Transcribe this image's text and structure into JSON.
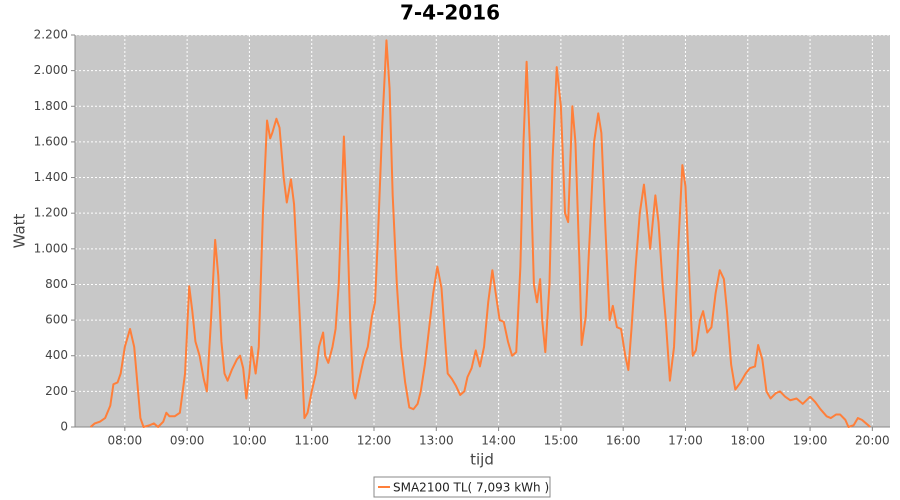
{
  "chart_data": {
    "type": "line",
    "title": "7-4-2016",
    "x_label": "tijd",
    "y_label": "Watt",
    "grid": true,
    "legend": "bottom",
    "xlim": [
      432,
      1217
    ],
    "ylim": [
      0,
      2200
    ],
    "xticks": [
      {
        "value": 480,
        "label": "08:00"
      },
      {
        "value": 540,
        "label": "09:00"
      },
      {
        "value": 600,
        "label": "10:00"
      },
      {
        "value": 660,
        "label": "11:00"
      },
      {
        "value": 720,
        "label": "12:00"
      },
      {
        "value": 780,
        "label": "13:00"
      },
      {
        "value": 840,
        "label": "14:00"
      },
      {
        "value": 900,
        "label": "15:00"
      },
      {
        "value": 960,
        "label": "16:00"
      },
      {
        "value": 1020,
        "label": "17:00"
      },
      {
        "value": 1080,
        "label": "18:00"
      },
      {
        "value": 1140,
        "label": "19:00"
      },
      {
        "value": 1200,
        "label": "20:00"
      }
    ],
    "yticks": [
      0,
      200,
      400,
      600,
      800,
      {
        "value": 1000,
        "label": "1.000"
      },
      {
        "value": 1200,
        "label": "1.200"
      },
      {
        "value": 1400,
        "label": "1.400"
      },
      {
        "value": 1600,
        "label": "1.600"
      },
      {
        "value": 1800,
        "label": "1.800"
      },
      {
        "value": 2000,
        "label": "2.000"
      },
      {
        "value": 2200,
        "label": "2.200"
      }
    ],
    "series": [
      {
        "name": "SMA2100 TL( 7,093 kWh )",
        "color": "#ff7f3a",
        "x": [
          447,
          451,
          456,
          461,
          466,
          469,
          473,
          476,
          480,
          485,
          489,
          492,
          495,
          498,
          504,
          508,
          512,
          517,
          520,
          523,
          528,
          533,
          538,
          542,
          545,
          548,
          552,
          556,
          559,
          563,
          567,
          570,
          573,
          576,
          579,
          583,
          588,
          591,
          594,
          597,
          600,
          602,
          606,
          609,
          613,
          617,
          620,
          622,
          626,
          629,
          633,
          636,
          640,
          643,
          647,
          651,
          653,
          656,
          660,
          664,
          667,
          671,
          673,
          676,
          680,
          683,
          686,
          689,
          691,
          694,
          697,
          700,
          702,
          707,
          710,
          714,
          718,
          721,
          724,
          728,
          732,
          735,
          738,
          742,
          746,
          750,
          754,
          758,
          762,
          765,
          769,
          773,
          777,
          781,
          785,
          789,
          791,
          795,
          799,
          803,
          807,
          810,
          814,
          818,
          822,
          826,
          830,
          834,
          838,
          841,
          845,
          849,
          853,
          857,
          861,
          864,
          867,
          870,
          874,
          877,
          880,
          882,
          885,
          889,
          892,
          896,
          900,
          904,
          907,
          911,
          914,
          918,
          920,
          924,
          928,
          932,
          936,
          939,
          943,
          947,
          950,
          954,
          958,
          962,
          965,
          968,
          972,
          976,
          980,
          983,
          986,
          991,
          994,
          998,
          1001,
          1005,
          1009,
          1013,
          1017,
          1020,
          1024,
          1027,
          1030,
          1034,
          1037,
          1041,
          1045,
          1049,
          1053,
          1057,
          1060,
          1064,
          1068,
          1073,
          1078,
          1082,
          1087,
          1090,
          1094,
          1098,
          1102,
          1107,
          1111,
          1116,
          1121,
          1127,
          1133,
          1140,
          1145,
          1150,
          1156,
          1160,
          1165,
          1169,
          1174,
          1177,
          1182,
          1186,
          1190,
          1194,
          1198
        ],
        "values": [
          0,
          20,
          30,
          50,
          120,
          240,
          250,
          300,
          450,
          550,
          450,
          250,
          50,
          0,
          10,
          20,
          0,
          30,
          80,
          60,
          60,
          80,
          300,
          790,
          650,
          480,
          400,
          270,
          200,
          600,
          1050,
          850,
          480,
          300,
          260,
          320,
          380,
          400,
          330,
          160,
          300,
          450,
          300,
          450,
          1200,
          1720,
          1620,
          1650,
          1730,
          1680,
          1400,
          1260,
          1390,
          1250,
          800,
          300,
          50,
          80,
          200,
          300,
          450,
          530,
          400,
          360,
          450,
          550,
          800,
          1300,
          1630,
          1200,
          600,
          200,
          160,
          300,
          380,
          450,
          620,
          700,
          1100,
          1700,
          2170,
          1900,
          1300,
          800,
          450,
          250,
          110,
          100,
          130,
          200,
          350,
          550,
          750,
          900,
          780,
          450,
          300,
          270,
          230,
          180,
          200,
          280,
          330,
          430,
          340,
          450,
          700,
          880,
          720,
          600,
          590,
          480,
          400,
          420,
          900,
          1600,
          2050,
          1600,
          800,
          700,
          830,
          600,
          420,
          800,
          1500,
          2020,
          1800,
          1200,
          1150,
          1800,
          1600,
          900,
          460,
          620,
          1100,
          1600,
          1760,
          1650,
          1100,
          600,
          680,
          560,
          550,
          400,
          320,
          550,
          900,
          1200,
          1360,
          1200,
          1000,
          1300,
          1150,
          800,
          600,
          260,
          450,
          1000,
          1470,
          1350,
          800,
          400,
          430,
          600,
          650,
          530,
          560,
          750,
          880,
          830,
          650,
          350,
          210,
          250,
          300,
          330,
          340,
          460,
          380,
          200,
          160,
          190,
          200,
          170,
          150,
          160,
          130,
          170,
          140,
          100,
          60,
          50,
          70,
          70,
          40,
          0,
          10,
          50,
          40,
          20,
          0
        ]
      }
    ]
  }
}
